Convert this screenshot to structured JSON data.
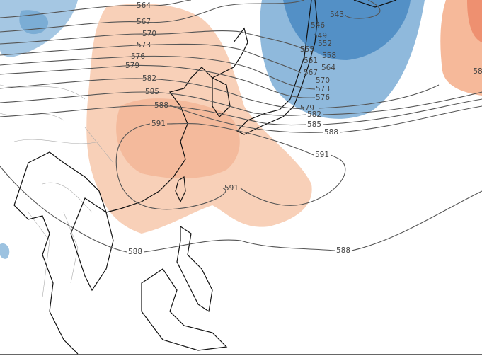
{
  "contour_labels": [
    564,
    567,
    570,
    573,
    576,
    579,
    582,
    585,
    588,
    591,
    591,
    591,
    588,
    588,
    588,
    585,
    582,
    579,
    576,
    573,
    570,
    567,
    564,
    561,
    558,
    555,
    552,
    549,
    546,
    543,
    58
  ]
}
